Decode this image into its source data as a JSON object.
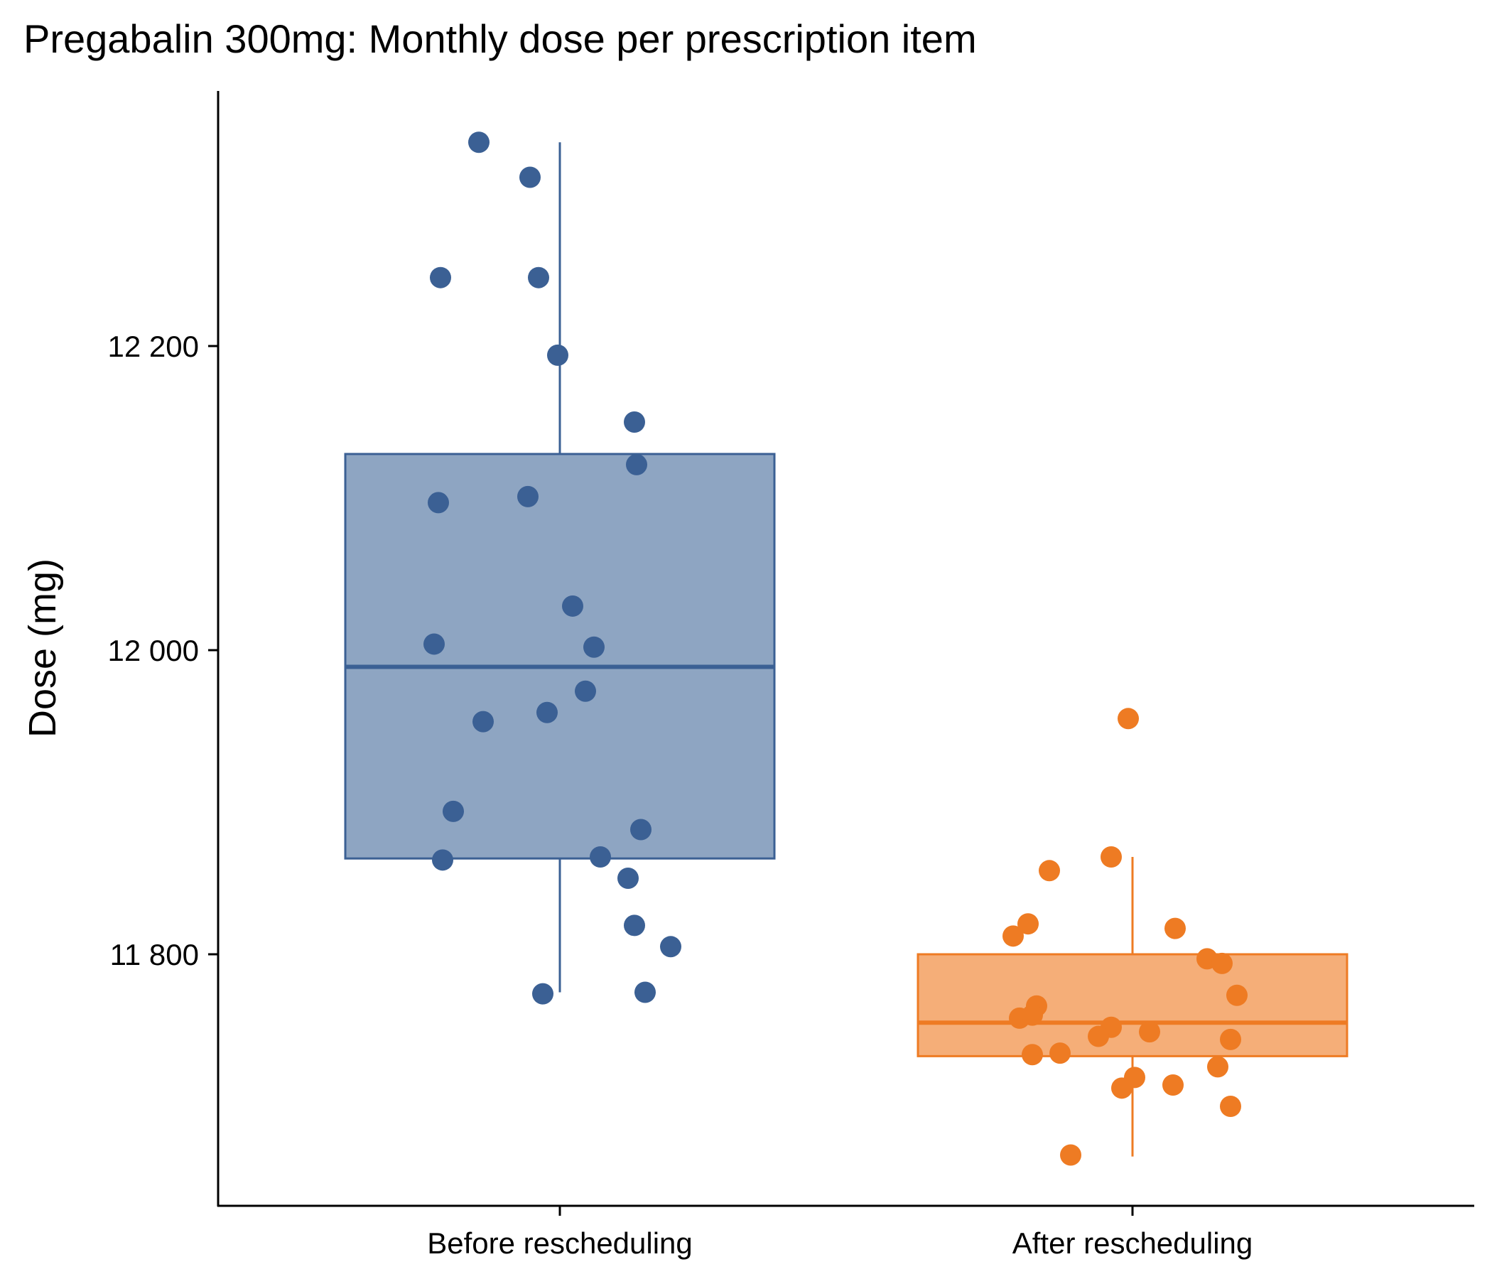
{
  "chart_data": {
    "type": "box",
    "title": "Pregabalin 300mg: Monthly dose per prescription item",
    "xlabel": "",
    "ylabel": "Dose (mg)",
    "ylim": [
      11635,
      12245
    ],
    "yticks": [
      {
        "value": 11800,
        "label": "11 800"
      },
      {
        "value": 12000,
        "label": "12 000"
      },
      {
        "value": 12200,
        "label": "12 200"
      }
    ],
    "grid": false,
    "legend": "none",
    "categories": [
      "Before rescheduling",
      "After rescheduling"
    ],
    "series": [
      {
        "category": "Before rescheduling",
        "color": "#3b6094",
        "fill": "#8ea5c2",
        "box": {
          "whisker_low": 11775,
          "q1": 11863,
          "median": 11989,
          "q3": 12129,
          "whisker_high": 12334
        },
        "points": [
          {
            "jitter": -0.38,
            "y": 12334
          },
          {
            "jitter": -0.14,
            "y": 12311
          },
          {
            "jitter": -0.56,
            "y": 12245
          },
          {
            "jitter": -0.1,
            "y": 12245
          },
          {
            "jitter": -0.01,
            "y": 12194
          },
          {
            "jitter": 0.35,
            "y": 12150
          },
          {
            "jitter": 0.36,
            "y": 12122
          },
          {
            "jitter": -0.57,
            "y": 12097
          },
          {
            "jitter": -0.15,
            "y": 12101
          },
          {
            "jitter": 0.06,
            "y": 12029
          },
          {
            "jitter": -0.59,
            "y": 12004
          },
          {
            "jitter": 0.16,
            "y": 12002
          },
          {
            "jitter": 0.12,
            "y": 11973
          },
          {
            "jitter": -0.06,
            "y": 11959
          },
          {
            "jitter": -0.36,
            "y": 11953
          },
          {
            "jitter": -0.5,
            "y": 11894
          },
          {
            "jitter": 0.38,
            "y": 11882
          },
          {
            "jitter": -0.55,
            "y": 11862
          },
          {
            "jitter": 0.19,
            "y": 11864
          },
          {
            "jitter": 0.32,
            "y": 11850
          },
          {
            "jitter": 0.35,
            "y": 11819
          },
          {
            "jitter": 0.52,
            "y": 11805
          },
          {
            "jitter": -0.08,
            "y": 11774
          },
          {
            "jitter": 0.4,
            "y": 11775
          }
        ]
      },
      {
        "category": "After rescheduling",
        "color": "#ee7b23",
        "fill": "#f5ae78",
        "box": {
          "whisker_low": 11667,
          "q1": 11733,
          "median": 11755,
          "q3": 11800,
          "whisker_high": 11864
        },
        "points": [
          {
            "jitter": -0.02,
            "y": 11955
          },
          {
            "jitter": -0.1,
            "y": 11864
          },
          {
            "jitter": -0.39,
            "y": 11855
          },
          {
            "jitter": -0.49,
            "y": 11820
          },
          {
            "jitter": -0.56,
            "y": 11812
          },
          {
            "jitter": 0.2,
            "y": 11817
          },
          {
            "jitter": 0.35,
            "y": 11797
          },
          {
            "jitter": 0.42,
            "y": 11794
          },
          {
            "jitter": 0.49,
            "y": 11773
          },
          {
            "jitter": -0.45,
            "y": 11766
          },
          {
            "jitter": -0.53,
            "y": 11758
          },
          {
            "jitter": -0.47,
            "y": 11760
          },
          {
            "jitter": -0.1,
            "y": 11752
          },
          {
            "jitter": -0.16,
            "y": 11746
          },
          {
            "jitter": 0.08,
            "y": 11749
          },
          {
            "jitter": 0.46,
            "y": 11744
          },
          {
            "jitter": -0.47,
            "y": 11734
          },
          {
            "jitter": -0.34,
            "y": 11735
          },
          {
            "jitter": 0.4,
            "y": 11726
          },
          {
            "jitter": 0.01,
            "y": 11719
          },
          {
            "jitter": -0.05,
            "y": 11712
          },
          {
            "jitter": 0.19,
            "y": 11714
          },
          {
            "jitter": 0.46,
            "y": 11700
          },
          {
            "jitter": -0.29,
            "y": 11668
          }
        ]
      }
    ]
  }
}
